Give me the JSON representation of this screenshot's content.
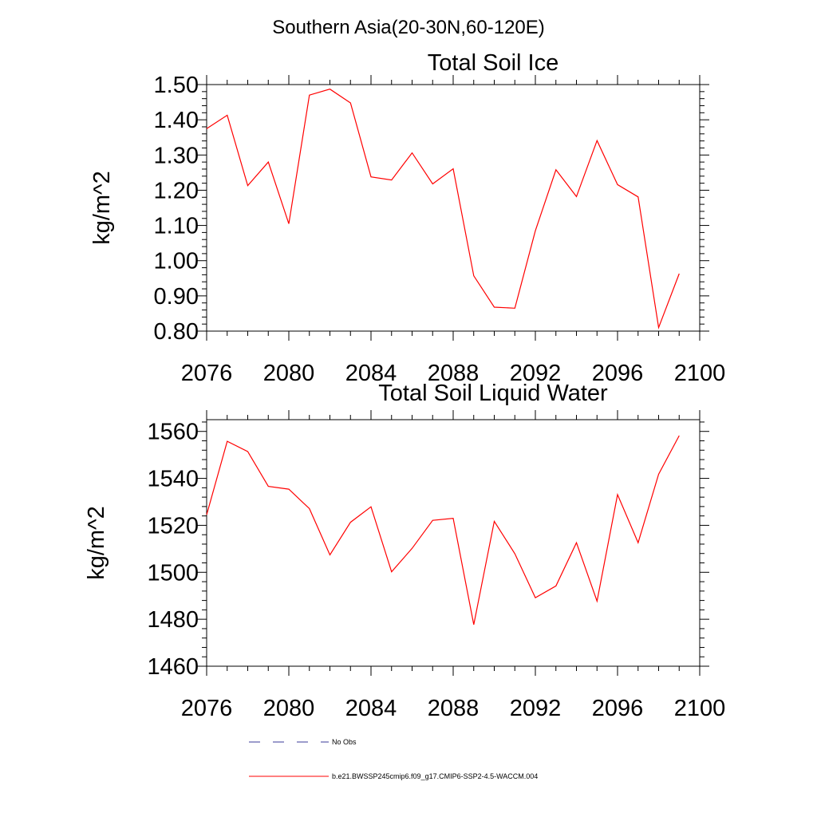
{
  "figure": {
    "title": "Southern Asia(20-30N,60-120E)"
  },
  "chart_data": [
    {
      "type": "line",
      "title": "Total Soil Ice",
      "ylabel": "kg/m^2",
      "xlabel": "",
      "xlim": [
        2076,
        2100
      ],
      "ylim": [
        0.8,
        1.5
      ],
      "xticks": [
        2076,
        2080,
        2084,
        2088,
        2092,
        2096,
        2100
      ],
      "xtick_labels": [
        "2076",
        "2080",
        "2084",
        "2088",
        "2092",
        "2096",
        "2100"
      ],
      "yticks": [
        0.8,
        0.9,
        1.0,
        1.1,
        1.2,
        1.3,
        1.4,
        1.5
      ],
      "ytick_labels": [
        "0.80",
        "0.90",
        "1.00",
        "1.10",
        "1.20",
        "1.30",
        "1.40",
        "1.50"
      ],
      "grid": false,
      "series": [
        {
          "name": "b.e21.BWSSP245cmip6.f09_g17.CMIP6-SSP2-4.5-WACCM.004",
          "color": "#ff0000",
          "x": [
            2076,
            2077,
            2078,
            2079,
            2080,
            2081,
            2082,
            2083,
            2084,
            2085,
            2086,
            2087,
            2088,
            2089,
            2090,
            2091,
            2092,
            2093,
            2094,
            2095,
            2096,
            2097,
            2098,
            2099
          ],
          "y": [
            1.375,
            1.413,
            1.213,
            1.28,
            1.105,
            1.47,
            1.487,
            1.448,
            1.238,
            1.229,
            1.306,
            1.218,
            1.261,
            0.957,
            0.868,
            0.865,
            1.085,
            1.258,
            1.182,
            1.341,
            1.216,
            1.181,
            0.81,
            0.963
          ]
        }
      ]
    },
    {
      "type": "line",
      "title": "Total Soil Liquid Water",
      "ylabel": "kg/m^2",
      "xlabel": "",
      "xlim": [
        2076,
        2100
      ],
      "ylim": [
        1460,
        1565
      ],
      "xticks": [
        2076,
        2080,
        2084,
        2088,
        2092,
        2096,
        2100
      ],
      "xtick_labels": [
        "2076",
        "2080",
        "2084",
        "2088",
        "2092",
        "2096",
        "2100"
      ],
      "yticks": [
        1460,
        1480,
        1500,
        1520,
        1540,
        1560
      ],
      "ytick_labels": [
        "1460",
        "1480",
        "1500",
        "1520",
        "1540",
        "1560"
      ],
      "grid": false,
      "series": [
        {
          "name": "b.e21.BWSSP245cmip6.f09_g17.CMIP6-SSP2-4.5-WACCM.004",
          "color": "#ff0000",
          "x": [
            2076,
            2077,
            2078,
            2079,
            2080,
            2081,
            2082,
            2083,
            2084,
            2085,
            2086,
            2087,
            2088,
            2089,
            2090,
            2091,
            2092,
            2093,
            2094,
            2095,
            2096,
            2097,
            2098,
            2099
          ],
          "y": [
            1524.5,
            1555.8,
            1551.4,
            1536.6,
            1535.4,
            1527.1,
            1507.4,
            1521.3,
            1527.9,
            1500.2,
            1510.2,
            1522.1,
            1523.0,
            1477.7,
            1521.7,
            1507.9,
            1489.2,
            1494.2,
            1512.6,
            1487.7,
            1533.1,
            1512.6,
            1541.8,
            1558.2
          ]
        }
      ]
    }
  ],
  "legend": {
    "placement": "bottom-left",
    "entries": [
      {
        "label": "No Obs",
        "color": "#3a3a9a",
        "style": "dashed"
      },
      {
        "label": "b.e21.BWSSP245cmip6.f09_g17.CMIP6-SSP2-4.5-WACCM.004",
        "color": "#ff0000",
        "style": "solid"
      }
    ]
  }
}
